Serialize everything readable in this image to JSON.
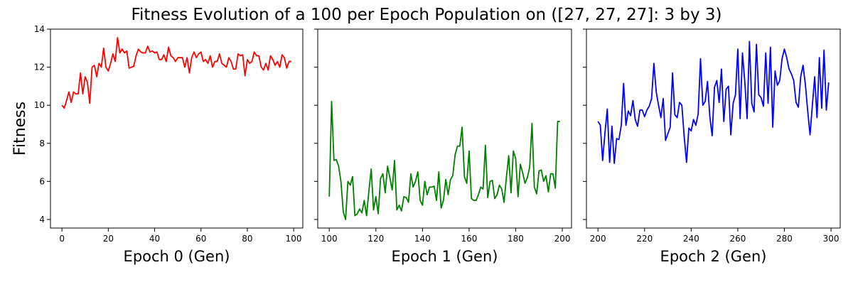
{
  "figure": {
    "title": "Fitness Evolution of a 100 per Epoch Population on ([27, 27, 27]: 3 by 3)",
    "ylabel": "Fitness"
  },
  "chart_data": [
    {
      "type": "line",
      "xlabel": "Epoch 0 (Gen)",
      "ylabel": "Fitness",
      "xlim": [
        -4.95,
        103.95
      ],
      "ylim": [
        3.55,
        14.0
      ],
      "xticks": [
        0,
        20,
        40,
        60,
        80,
        100
      ],
      "yticks": [
        4,
        6,
        8,
        10,
        12,
        14
      ],
      "grid": false,
      "series": [
        {
          "color": "#ff0000",
          "x_start": 0,
          "values": [
            10.0,
            9.85,
            10.25,
            10.7,
            10.15,
            10.7,
            10.6,
            10.6,
            11.7,
            10.6,
            11.5,
            11.2,
            10.1,
            12.0,
            12.1,
            11.5,
            12.2,
            12.0,
            13.0,
            12.0,
            11.8,
            12.2,
            12.7,
            12.3,
            13.55,
            12.75,
            12.95,
            12.75,
            12.85,
            11.95,
            12.0,
            12.05,
            12.6,
            12.95,
            12.8,
            12.75,
            12.75,
            13.1,
            12.8,
            12.85,
            12.75,
            12.8,
            12.4,
            12.4,
            12.65,
            12.3,
            13.05,
            12.6,
            12.5,
            12.3,
            12.5,
            12.5,
            12.5,
            12.0,
            12.5,
            11.7,
            12.5,
            12.8,
            12.5,
            12.7,
            12.8,
            12.3,
            12.4,
            12.2,
            12.6,
            12.0,
            12.3,
            12.3,
            12.7,
            12.2,
            12.1,
            12.0,
            12.5,
            12.3,
            11.9,
            11.9,
            12.7,
            12.6,
            12.65,
            11.55,
            12.4,
            12.2,
            12.3,
            12.8,
            12.6,
            12.6,
            12.0,
            11.85,
            12.2,
            11.85,
            12.6,
            12.4,
            12.1,
            12.3,
            12.0,
            12.65,
            12.5,
            11.95,
            12.3,
            12.3
          ]
        }
      ]
    },
    {
      "type": "line",
      "xlabel": "Epoch 1 (Gen)",
      "xlim": [
        95.05,
        203.95
      ],
      "ylim": [
        3.55,
        14.0
      ],
      "xticks": [
        100,
        120,
        140,
        160,
        180,
        200
      ],
      "yticks": [
        4,
        6,
        8,
        10,
        12,
        14
      ],
      "grid": false,
      "series": [
        {
          "color": "#008000",
          "x_start": 100,
          "values": [
            5.2,
            10.2,
            7.1,
            7.15,
            6.8,
            6.0,
            4.4,
            4.0,
            6.0,
            5.8,
            6.25,
            4.2,
            4.3,
            4.55,
            4.35,
            5.0,
            4.2,
            5.5,
            6.65,
            4.5,
            5.2,
            4.3,
            6.15,
            6.4,
            5.4,
            6.8,
            6.2,
            5.55,
            7.1,
            4.5,
            4.75,
            4.45,
            5.2,
            5.15,
            4.9,
            6.4,
            5.7,
            6.0,
            6.5,
            5.0,
            4.75,
            6.0,
            5.3,
            5.7,
            5.7,
            5.75,
            5.0,
            6.5,
            4.6,
            5.0,
            6.1,
            5.3,
            6.1,
            6.3,
            7.4,
            7.85,
            7.85,
            8.85,
            6.25,
            5.9,
            7.6,
            5.1,
            5.0,
            5.0,
            5.3,
            5.7,
            5.6,
            7.9,
            5.15,
            6.0,
            6.05,
            5.1,
            5.3,
            5.8,
            5.6,
            4.9,
            6.2,
            7.35,
            5.4,
            7.6,
            7.2,
            5.2,
            6.9,
            6.45,
            5.9,
            6.2,
            6.75,
            9.05,
            5.7,
            5.35,
            6.55,
            6.6,
            6.0,
            6.3,
            5.45,
            6.4,
            6.4,
            5.65,
            9.15,
            9.15
          ]
        }
      ]
    },
    {
      "type": "line",
      "xlabel": "Epoch 2 (Gen)",
      "xlim": [
        195.05,
        303.95
      ],
      "ylim": [
        3.55,
        14.0
      ],
      "xticks": [
        200,
        220,
        240,
        260,
        280,
        300
      ],
      "yticks": [
        4,
        6,
        8,
        10,
        12,
        14
      ],
      "grid": false,
      "series": [
        {
          "color": "#0000ff",
          "x_start": 200,
          "values": [
            9.15,
            8.95,
            7.1,
            8.55,
            9.8,
            7.0,
            8.9,
            6.95,
            8.25,
            8.2,
            8.95,
            11.15,
            8.95,
            9.7,
            9.45,
            10.25,
            9.25,
            8.9,
            9.75,
            9.75,
            9.4,
            9.75,
            9.95,
            10.35,
            12.2,
            10.7,
            10.0,
            9.35,
            10.35,
            8.15,
            8.5,
            8.85,
            11.7,
            9.5,
            9.35,
            10.15,
            10.0,
            8.35,
            7.0,
            8.8,
            8.65,
            9.25,
            8.95,
            9.55,
            12.45,
            10.0,
            10.2,
            11.25,
            9.4,
            8.4,
            10.95,
            11.3,
            10.15,
            11.9,
            9.15,
            10.85,
            11.0,
            8.45,
            10.1,
            10.55,
            12.95,
            9.3,
            12.75,
            11.25,
            9.3,
            13.35,
            10.1,
            9.65,
            13.2,
            10.55,
            10.4,
            9.95,
            12.75,
            10.1,
            13.05,
            8.85,
            11.8,
            11.05,
            11.3,
            12.45,
            12.95,
            12.5,
            11.9,
            11.65,
            11.3,
            10.15,
            9.9,
            11.5,
            12.1,
            11.1,
            9.7,
            8.45,
            10.0,
            11.5,
            9.35,
            12.5,
            9.85,
            12.9,
            9.75,
            11.2
          ]
        }
      ]
    }
  ]
}
